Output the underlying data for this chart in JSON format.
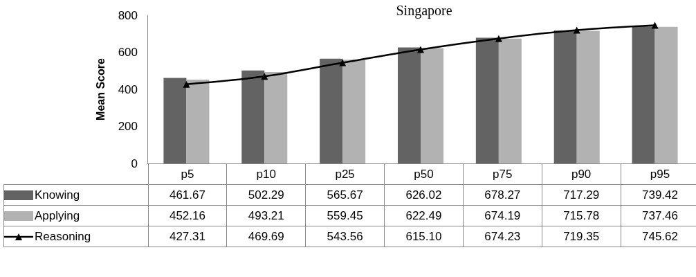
{
  "chart_data": {
    "type": "bar",
    "title": "Singapore",
    "ylabel": "Mean Score",
    "categories": [
      "p5",
      "p10",
      "p25",
      "p50",
      "p75",
      "p90",
      "p95"
    ],
    "series": [
      {
        "name": "Knowing",
        "color": "#636363",
        "values": [
          461.67,
          502.29,
          565.67,
          626.02,
          678.27,
          717.29,
          739.42
        ],
        "value_labels": [
          "461.67",
          "502.29",
          "565.67",
          "626.02",
          "678.27",
          "717.29",
          "739.42"
        ]
      },
      {
        "name": "Applying",
        "color": "#b2b2b2",
        "values": [
          452.16,
          493.21,
          559.45,
          622.49,
          674.19,
          715.78,
          737.46
        ],
        "value_labels": [
          "452.16",
          "493.21",
          "559.45",
          "622.49",
          "674.19",
          "715.78",
          "737.46"
        ]
      },
      {
        "name": "Reasoning",
        "type": "line",
        "color": "#000000",
        "marker": "triangle",
        "line_style": "solid",
        "values": [
          427.31,
          469.69,
          543.56,
          615.1,
          674.23,
          719.35,
          745.62
        ],
        "value_labels": [
          "427.31",
          "469.69",
          "543.56",
          "615.10",
          "674.23",
          "719.35",
          "745.62"
        ]
      }
    ],
    "ylim": [
      0,
      800
    ],
    "yticks": [
      0,
      200,
      400,
      600,
      800
    ],
    "grid": false,
    "legend": "bottom left"
  }
}
